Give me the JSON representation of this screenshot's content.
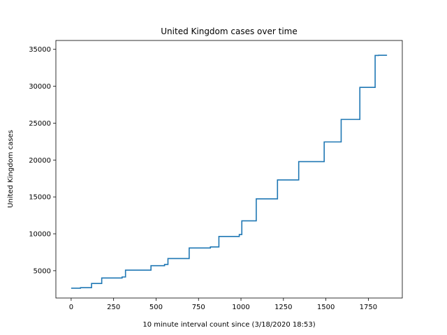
{
  "chart_data": {
    "type": "line",
    "title": "United Kingdom cases over time",
    "xlabel": "10 minute interval count since (3/18/2020 18:53)",
    "ylabel": "United Kingdom cases",
    "xlim": [
      -90,
      1950
    ],
    "ylim": [
      1300,
      36200
    ],
    "xticks": [
      0,
      250,
      500,
      750,
      1000,
      1250,
      1500,
      1750
    ],
    "yticks": [
      5000,
      10000,
      15000,
      20000,
      25000,
      30000,
      35000
    ],
    "grid": false,
    "line_color": "#1f77b4",
    "series": [
      {
        "step": true,
        "x": [
          0,
          55,
          120,
          180,
          300,
          320,
          470,
          550,
          570,
          695,
          820,
          870,
          990,
          1005,
          1090,
          1215,
          1340,
          1490,
          1590,
          1700,
          1790,
          1810,
          1860
        ],
        "y": [
          2626,
          2700,
          3270,
          4010,
          4150,
          5080,
          5680,
          5850,
          6650,
          8080,
          8220,
          9640,
          9900,
          11760,
          14740,
          17300,
          19780,
          22450,
          25500,
          29850,
          34170,
          34200,
          34200
        ]
      }
    ]
  }
}
